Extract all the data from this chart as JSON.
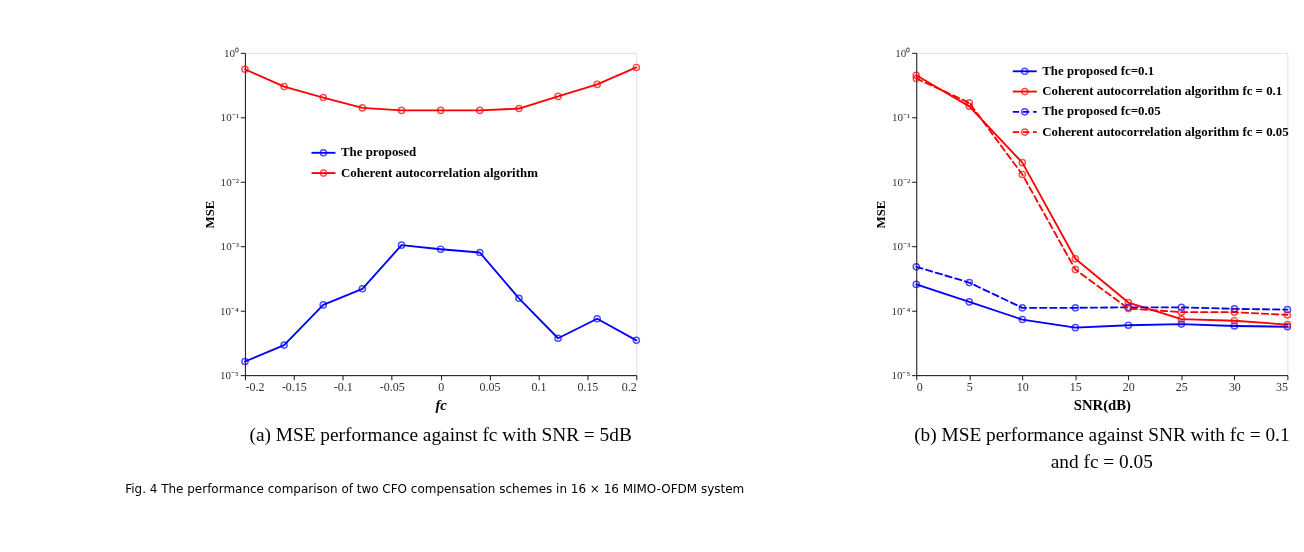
{
  "chart_data": [
    {
      "type": "line",
      "xlabel": "fc",
      "ylabel": "MSE",
      "log": "y",
      "grid": false,
      "legend": "left",
      "marker": "circle",
      "x": [
        -0.2,
        -0.16,
        -0.12,
        -0.08,
        -0.04,
        0,
        0.04,
        0.08,
        0.12,
        0.16,
        0.2
      ],
      "xlim": [
        -0.2,
        0.2
      ],
      "xticks": [
        -0.2,
        -0.15,
        -0.1,
        -0.05,
        0,
        0.05,
        0.1,
        0.15,
        0.2
      ],
      "ylim": [
        1e-05,
        1
      ],
      "yticks": [
        {
          "value": 1e-05,
          "label": "10⁻⁵"
        },
        {
          "value": 0.0001,
          "label": "10⁻⁴"
        },
        {
          "value": 0.001,
          "label": "10⁻³"
        },
        {
          "value": 0.01,
          "label": "10⁻²"
        },
        {
          "value": 0.1,
          "label": "10⁻¹"
        },
        {
          "value": 1,
          "label": "10⁰"
        }
      ],
      "series": [
        {
          "name": "The proposed",
          "color": "#0000ff",
          "line_style": "solid",
          "values": [
            1.63e-05,
            2.93e-05,
            0.000123,
            0.000219,
            0.00104,
            0.0009,
            0.0008,
            0.000156,
            3.74e-05,
            7.5e-05,
            3.47e-05
          ]
        },
        {
          "name": "Coherent autocorrelation algorithm",
          "color": "#ff0000",
          "line_style": "solid",
          "values": [
            0.557,
            0.3,
            0.203,
            0.14,
            0.128,
            0.128,
            0.128,
            0.137,
            0.211,
            0.324,
            0.594
          ]
        }
      ],
      "annotations": [
        "(a) MSE performance against fc with SNR = 5dB",
        "Fig. 4 The performance comparison of two CFO compensation schemes in 16 × 16 MIMO-OFDM system"
      ]
    },
    {
      "type": "line",
      "xlabel": "SNR(dB)",
      "ylabel": "MSE",
      "log": "y",
      "grid": false,
      "legend": "top right",
      "marker": "circle",
      "x": [
        0,
        5,
        10,
        15,
        20,
        25,
        30,
        35
      ],
      "xlim": [
        0,
        35
      ],
      "xticks": [
        0,
        5,
        10,
        15,
        20,
        25,
        30,
        35
      ],
      "ylim": [
        1e-05,
        1
      ],
      "yticks": [
        {
          "value": 1e-05,
          "label": "10⁻⁵"
        },
        {
          "value": 0.0001,
          "label": "10⁻⁴"
        },
        {
          "value": 0.001,
          "label": "10⁻³"
        },
        {
          "value": 0.01,
          "label": "10⁻²"
        },
        {
          "value": 0.1,
          "label": "10⁻¹"
        },
        {
          "value": 1,
          "label": "10⁰"
        }
      ],
      "series": [
        {
          "name": "The proposed fc=0.1",
          "color": "#0000ff",
          "line_style": "solid",
          "values": [
            0.000256,
            0.000137,
            7.3e-05,
            5.46e-05,
            5.96e-05,
            6.2e-05,
            5.8e-05,
            5.64e-05
          ]
        },
        {
          "name": "Coherent autocorrelation algorithm fc = 0.1",
          "color": "#ff0000",
          "line_style": "solid",
          "values": [
            0.45,
            0.148,
            0.0198,
            0.00064,
            0.000134,
            7.4e-05,
            7e-05,
            6.1e-05
          ]
        },
        {
          "name": "The proposed fc=0.05",
          "color": "#0000ff",
          "line_style": "dashed",
          "values": [
            0.00048,
            0.000273,
            0.000111,
            0.000111,
            0.000113,
            0.000113,
            0.000107,
            0.000104
          ]
        },
        {
          "name": "Coherent autocorrelation algorithm fc = 0.05",
          "color": "#ff0000",
          "line_style": "dashed",
          "values": [
            0.4,
            0.168,
            0.013,
            0.000435,
            0.000108,
            9.5e-05,
            9.5e-05,
            8.6e-05
          ]
        }
      ],
      "annotations": [
        "(b) MSE performance against SNR with fc = 0.1 and fc = 0.05"
      ]
    }
  ]
}
